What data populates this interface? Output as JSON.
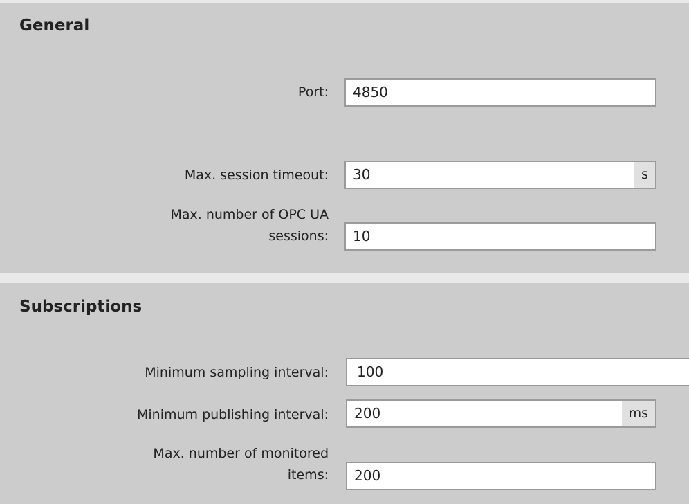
{
  "general": {
    "title": "General",
    "port": {
      "label": "Port:",
      "value": "4850"
    },
    "session_timeout": {
      "label": "Max. session timeout:",
      "value": "30",
      "unit": "s"
    },
    "max_sessions": {
      "label_line1": "Max. number of OPC UA",
      "label_line2": "sessions:",
      "value": "10"
    }
  },
  "subscriptions": {
    "title": "Subscriptions",
    "sampling": {
      "label": "Minimum sampling interval:",
      "value": "100"
    },
    "publishing": {
      "label": "Minimum publishing interval:",
      "value": "200",
      "unit": "ms"
    },
    "monitored": {
      "label_line1": "Max. number of monitored",
      "label_line2": "items:",
      "value": "200"
    }
  }
}
